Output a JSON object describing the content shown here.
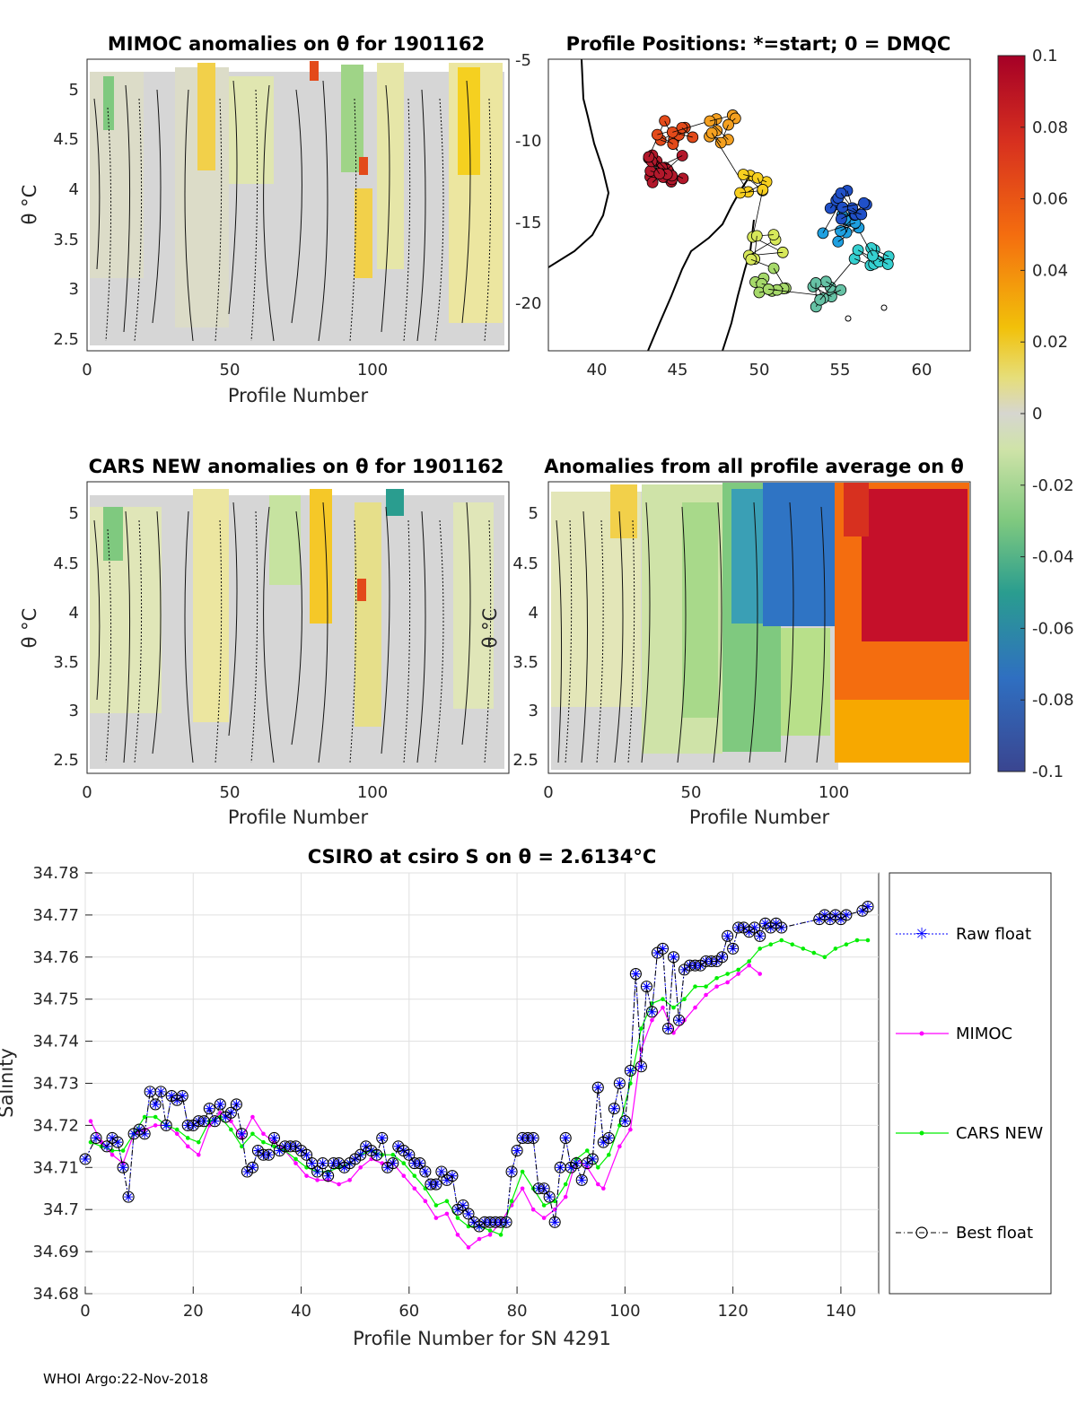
{
  "footer": "WHOI Argo:22-Nov-2018",
  "colorbar": {
    "ticks": [
      "0.1",
      "0.08",
      "0.06",
      "0.04",
      "0.02",
      "0",
      "-0.02",
      "-0.04",
      "-0.06",
      "-0.08",
      "-0.1"
    ],
    "colors": [
      "#a50026",
      "#d7301f",
      "#f46d0f",
      "#f7a800",
      "#f2d400",
      "#d9d9a8",
      "#cccccc",
      "#b8e08a",
      "#5cbf78",
      "#2d9e8f",
      "#2f7fc1",
      "#3b4cc0",
      "#3a3f9e"
    ]
  },
  "panels": {
    "mimoc": {
      "title": "MIMOC anomalies on θ  for 1901162",
      "ylabel": "θ °C",
      "xlabel": "Profile Number",
      "xticks": [
        "0",
        "50",
        "100"
      ],
      "yticks": [
        "5",
        "4.5",
        "4",
        "3.5",
        "3",
        "2.5"
      ]
    },
    "positions": {
      "title": "Profile Positions: *=start; 0 = DMQC",
      "xticks": [
        "40",
        "45",
        "50",
        "55",
        "60"
      ],
      "yticks": [
        "-5",
        "-10",
        "-15",
        "-20"
      ],
      "xlim": [
        37,
        63
      ],
      "ylim": [
        -23,
        -5
      ],
      "clusters": [
        {
          "lon": 44.2,
          "lat": -11.8,
          "color": "#b2182b",
          "n": 22
        },
        {
          "lon": 44.8,
          "lat": -9.5,
          "color": "#e34a1a",
          "n": 10
        },
        {
          "lon": 47.5,
          "lat": -9.3,
          "color": "#f4a020",
          "n": 10
        },
        {
          "lon": 50.0,
          "lat": -13.0,
          "color": "#f7cf1f",
          "n": 8
        },
        {
          "lon": 50.5,
          "lat": -16.5,
          "color": "#d7e85a",
          "n": 8
        },
        {
          "lon": 50.8,
          "lat": -18.5,
          "color": "#a6d96a",
          "n": 10
        },
        {
          "lon": 54.5,
          "lat": -19.5,
          "color": "#66c2a5",
          "n": 9
        },
        {
          "lon": 57.0,
          "lat": -17.5,
          "color": "#35d0d0",
          "n": 10
        },
        {
          "lon": 55.0,
          "lat": -15.5,
          "color": "#1fa0e0",
          "n": 10
        },
        {
          "lon": 55.5,
          "lat": -14.0,
          "color": "#2050c8",
          "n": 14
        }
      ]
    },
    "cars": {
      "title": "CARS NEW anomalies on θ for 1901162",
      "ylabel": "θ °C",
      "xlabel": "Profile Number",
      "xticks": [
        "0",
        "50",
        "100"
      ],
      "yticks": [
        "5",
        "4.5",
        "4",
        "3.5",
        "3",
        "2.5"
      ]
    },
    "allavg": {
      "title": "Anomalies from all profile average on θ",
      "ylabel": "θ °C",
      "xlabel": "Profile Number",
      "xticks": [
        "0",
        "50",
        "100"
      ],
      "yticks": [
        "5",
        "4.5",
        "4",
        "3.5",
        "3",
        "2.5"
      ]
    }
  },
  "chart_data": {
    "type": "line",
    "title": "CSIRO at csiro S on θ = 2.6134°C",
    "xlabel": "Profile Number for SN 4291",
    "ylabel": "Salinity",
    "xlim": [
      0,
      147
    ],
    "ylim": [
      34.68,
      34.78
    ],
    "xticks": [
      "0",
      "20",
      "40",
      "60",
      "80",
      "100",
      "120",
      "140"
    ],
    "yticks": [
      "34.78",
      "34.77",
      "34.76",
      "34.75",
      "34.74",
      "34.73",
      "34.72",
      "34.71",
      "34.7",
      "34.69",
      "34.68"
    ],
    "legend": [
      "Raw float",
      "MIMOC",
      "CARS NEW",
      "Best float"
    ],
    "series": [
      {
        "name": "MIMOC",
        "color": "#ff00ff",
        "x": [
          1,
          3,
          5,
          7,
          9,
          11,
          13,
          15,
          17,
          19,
          21,
          23,
          25,
          27,
          29,
          31,
          33,
          35,
          37,
          39,
          41,
          43,
          45,
          47,
          49,
          51,
          53,
          55,
          57,
          59,
          61,
          63,
          65,
          67,
          69,
          71,
          73,
          75,
          77,
          79,
          81,
          83,
          85,
          87,
          89,
          91,
          93,
          95,
          96,
          99,
          101,
          103,
          105,
          107,
          109,
          111,
          113,
          115,
          117,
          119,
          121,
          123,
          125
        ],
        "y": [
          34.721,
          34.716,
          34.713,
          34.711,
          34.718,
          34.719,
          34.72,
          34.72,
          34.718,
          34.715,
          34.713,
          34.72,
          34.723,
          34.721,
          34.717,
          34.722,
          34.718,
          34.716,
          34.714,
          34.711,
          34.708,
          34.707,
          34.707,
          34.706,
          34.707,
          34.71,
          34.712,
          34.711,
          34.711,
          34.708,
          34.705,
          34.702,
          34.698,
          34.699,
          34.694,
          34.691,
          34.693,
          34.694,
          34.697,
          34.701,
          34.705,
          34.7,
          34.698,
          34.7,
          34.703,
          34.712,
          34.71,
          34.706,
          34.705,
          34.715,
          34.719,
          34.738,
          34.745,
          34.748,
          34.742,
          34.745,
          34.748,
          34.751,
          34.753,
          34.754,
          34.756,
          34.758,
          34.756
        ]
      },
      {
        "name": "CARS NEW",
        "color": "#00ee00",
        "x": [
          1,
          3,
          5,
          7,
          9,
          11,
          13,
          15,
          17,
          19,
          21,
          23,
          25,
          27,
          29,
          31,
          33,
          35,
          37,
          39,
          41,
          43,
          45,
          47,
          49,
          51,
          53,
          55,
          57,
          59,
          61,
          63,
          65,
          67,
          69,
          71,
          73,
          75,
          77,
          79,
          81,
          83,
          85,
          87,
          89,
          91,
          93,
          95,
          97,
          99,
          101,
          103,
          105,
          107,
          109,
          111,
          113,
          115,
          117,
          119,
          121,
          123,
          125,
          127,
          129,
          131,
          133,
          135,
          137,
          139,
          141,
          143,
          145
        ],
        "y": [
          34.716,
          34.715,
          34.714,
          34.714,
          34.718,
          34.722,
          34.722,
          34.72,
          34.719,
          34.717,
          34.716,
          34.721,
          34.722,
          34.719,
          34.715,
          34.718,
          34.716,
          34.715,
          34.714,
          34.712,
          34.71,
          34.709,
          34.709,
          34.71,
          34.711,
          34.713,
          34.714,
          34.713,
          34.713,
          34.711,
          34.708,
          34.705,
          34.701,
          34.702,
          34.698,
          34.696,
          34.696,
          34.695,
          34.694,
          34.702,
          34.709,
          34.705,
          34.701,
          34.702,
          34.706,
          34.712,
          34.714,
          34.71,
          34.713,
          34.72,
          34.73,
          34.743,
          34.749,
          34.75,
          34.748,
          34.75,
          34.753,
          34.753,
          34.755,
          34.756,
          34.757,
          34.759,
          34.762,
          34.763,
          34.764,
          34.763,
          34.762,
          34.761,
          34.76,
          34.762,
          34.763,
          34.764,
          34.764
        ]
      },
      {
        "name": "Raw float",
        "color": "#0000ff",
        "x": [
          0,
          2,
          4,
          5,
          6,
          7,
          8,
          9,
          10,
          11,
          12,
          13,
          14,
          15,
          16,
          17,
          18,
          19,
          20,
          21,
          22,
          23,
          24,
          25,
          26,
          27,
          28,
          29,
          30,
          31,
          32,
          33,
          34,
          35,
          36,
          37,
          38,
          39,
          40,
          41,
          42,
          43,
          44,
          45,
          46,
          47,
          48,
          49,
          50,
          51,
          52,
          53,
          54,
          55,
          56,
          57,
          58,
          59,
          60,
          61,
          62,
          63,
          64,
          65,
          66,
          67,
          68,
          69,
          70,
          71,
          72,
          73,
          74,
          75,
          76,
          77,
          78,
          79,
          80,
          81,
          82,
          83,
          84,
          85,
          86,
          87,
          88,
          89,
          90,
          91,
          92,
          93,
          94,
          95,
          96,
          97,
          98,
          99,
          100,
          101,
          102,
          103,
          104,
          105,
          106,
          107,
          108,
          109,
          110,
          111,
          112,
          113,
          114,
          115,
          116,
          117,
          118,
          119,
          120,
          121,
          122,
          123,
          124,
          125,
          126,
          127,
          128,
          129,
          136,
          137,
          138,
          139,
          140,
          141,
          144,
          145
        ],
        "y": [
          34.712,
          34.717,
          34.715,
          34.717,
          34.716,
          34.71,
          34.703,
          34.718,
          34.719,
          34.718,
          34.728,
          34.725,
          34.728,
          34.72,
          34.727,
          34.726,
          34.727,
          34.72,
          34.72,
          34.721,
          34.721,
          34.724,
          34.721,
          34.725,
          34.722,
          34.723,
          34.725,
          34.718,
          34.709,
          34.71,
          34.714,
          34.713,
          34.713,
          34.717,
          34.714,
          34.715,
          34.715,
          34.715,
          34.714,
          34.713,
          34.711,
          34.709,
          34.711,
          34.708,
          34.711,
          34.711,
          34.71,
          34.711,
          34.712,
          34.713,
          34.715,
          34.714,
          34.713,
          34.717,
          34.71,
          34.711,
          34.715,
          34.714,
          34.713,
          34.711,
          34.711,
          34.709,
          34.706,
          34.706,
          34.709,
          34.707,
          34.708,
          34.7,
          34.701,
          34.699,
          34.697,
          34.696,
          34.697,
          34.697,
          34.697,
          34.697,
          34.697,
          34.709,
          34.714,
          34.717,
          34.717,
          34.717,
          34.705,
          34.705,
          34.703,
          34.697,
          34.71,
          34.717,
          34.71,
          34.711,
          34.707,
          34.711,
          34.712,
          34.729,
          34.716,
          34.717,
          34.724,
          34.73,
          34.721,
          34.733,
          34.756,
          34.734,
          34.753,
          34.747,
          34.761,
          34.762,
          34.743,
          34.76,
          34.745,
          34.757,
          34.758,
          34.758,
          34.758,
          34.759,
          34.759,
          34.759,
          34.76,
          34.765,
          34.762,
          34.767,
          34.767,
          34.766,
          34.767,
          34.765,
          34.768,
          34.767,
          34.768,
          34.767,
          34.769,
          34.77,
          34.769,
          34.77,
          34.769,
          34.77,
          34.771,
          34.772
        ]
      },
      {
        "name": "Best float",
        "color": "#000000",
        "x": [
          0,
          2,
          4,
          5,
          6,
          7,
          8,
          9,
          10,
          11,
          12,
          13,
          14,
          15,
          16,
          17,
          18,
          19,
          20,
          21,
          22,
          23,
          24,
          25,
          26,
          27,
          28,
          29,
          30,
          31,
          32,
          33,
          34,
          35,
          36,
          37,
          38,
          39,
          40,
          41,
          42,
          43,
          44,
          45,
          46,
          47,
          48,
          49,
          50,
          51,
          52,
          53,
          54,
          55,
          56,
          57,
          58,
          59,
          60,
          61,
          62,
          63,
          64,
          65,
          66,
          67,
          68,
          69,
          70,
          71,
          72,
          73,
          74,
          75,
          76,
          77,
          78,
          79,
          80,
          81,
          82,
          83,
          84,
          85,
          86,
          87,
          88,
          89,
          90,
          91,
          92,
          93,
          94,
          95,
          96,
          97,
          98,
          99,
          100,
          101,
          102,
          103,
          104,
          105,
          106,
          107,
          108,
          109,
          110,
          111,
          112,
          113,
          114,
          115,
          116,
          117,
          118,
          119,
          120,
          121,
          122,
          123,
          124,
          125,
          126,
          127,
          128,
          129,
          136,
          137,
          138,
          139,
          140,
          141,
          144,
          145
        ],
        "y": [
          34.712,
          34.717,
          34.715,
          34.717,
          34.716,
          34.71,
          34.703,
          34.718,
          34.719,
          34.718,
          34.728,
          34.725,
          34.728,
          34.72,
          34.727,
          34.726,
          34.727,
          34.72,
          34.72,
          34.721,
          34.721,
          34.724,
          34.721,
          34.725,
          34.722,
          34.723,
          34.725,
          34.718,
          34.709,
          34.71,
          34.714,
          34.713,
          34.713,
          34.717,
          34.714,
          34.715,
          34.715,
          34.715,
          34.714,
          34.713,
          34.711,
          34.709,
          34.711,
          34.708,
          34.711,
          34.711,
          34.71,
          34.711,
          34.712,
          34.713,
          34.715,
          34.714,
          34.713,
          34.717,
          34.71,
          34.711,
          34.715,
          34.714,
          34.713,
          34.711,
          34.711,
          34.709,
          34.706,
          34.706,
          34.709,
          34.707,
          34.708,
          34.7,
          34.701,
          34.699,
          34.697,
          34.696,
          34.697,
          34.697,
          34.697,
          34.697,
          34.697,
          34.709,
          34.714,
          34.717,
          34.717,
          34.717,
          34.705,
          34.705,
          34.703,
          34.697,
          34.71,
          34.717,
          34.71,
          34.711,
          34.707,
          34.711,
          34.712,
          34.729,
          34.716,
          34.717,
          34.724,
          34.73,
          34.721,
          34.733,
          34.756,
          34.734,
          34.753,
          34.747,
          34.761,
          34.762,
          34.743,
          34.76,
          34.745,
          34.757,
          34.758,
          34.758,
          34.758,
          34.759,
          34.759,
          34.759,
          34.76,
          34.765,
          34.762,
          34.767,
          34.767,
          34.766,
          34.767,
          34.765,
          34.768,
          34.767,
          34.768,
          34.767,
          34.769,
          34.77,
          34.769,
          34.77,
          34.769,
          34.77,
          34.771,
          34.772
        ]
      }
    ]
  }
}
